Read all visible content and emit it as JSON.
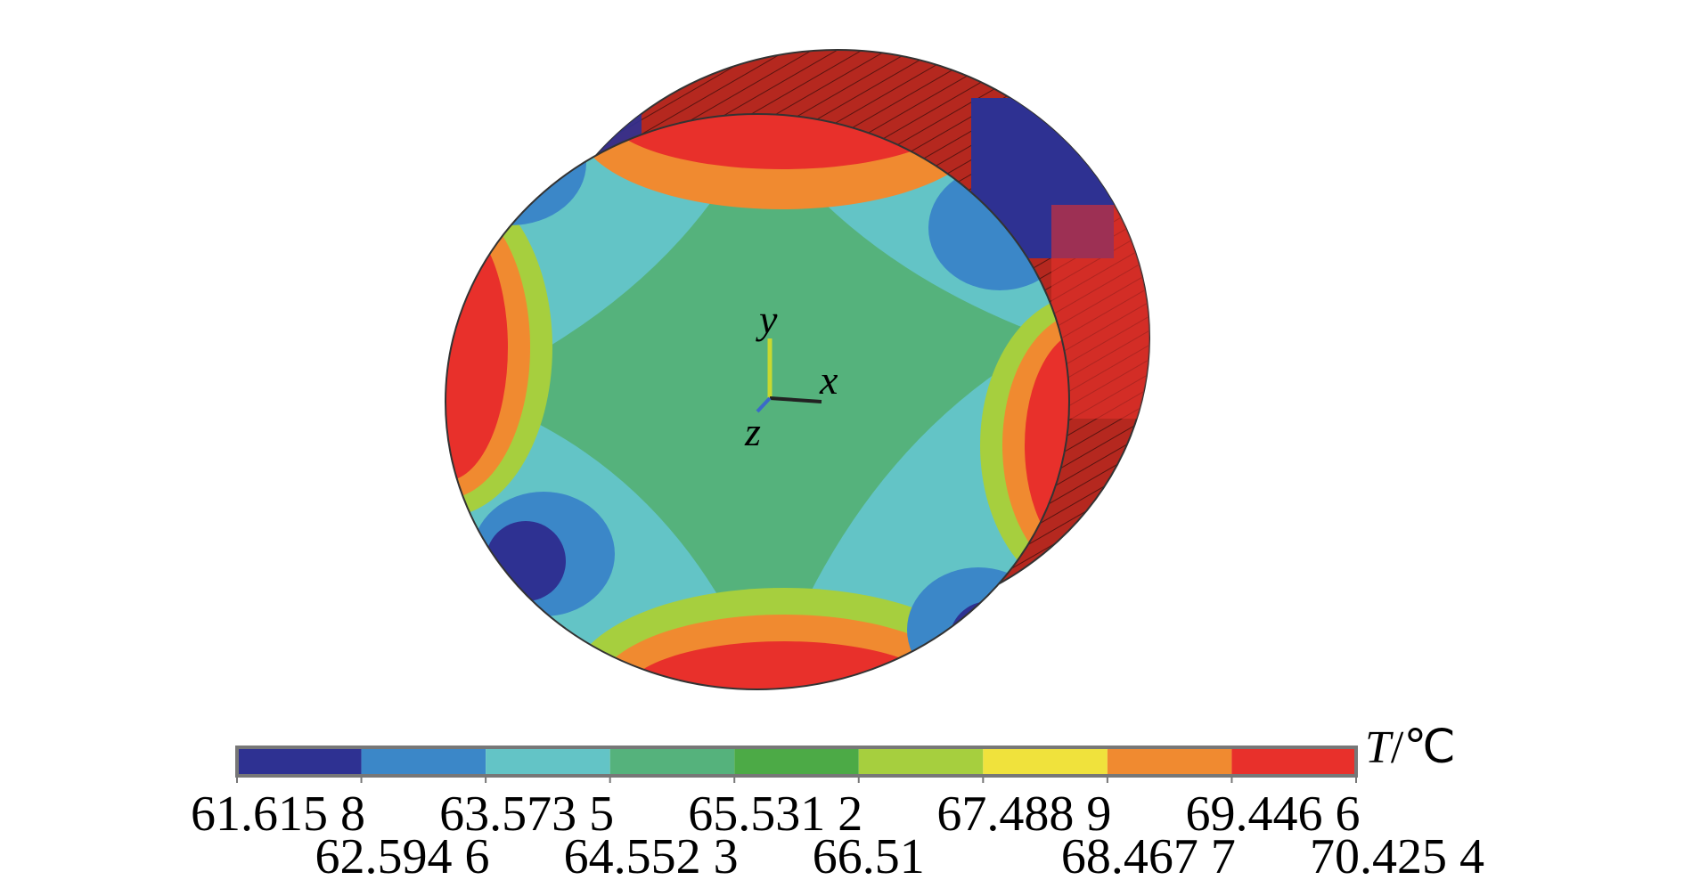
{
  "figure": {
    "axes": {
      "x": "x",
      "y": "y",
      "z": "z"
    },
    "colorbar": {
      "unit_symbol": "T",
      "unit_suffix": "/℃",
      "colors": [
        "#2e3192",
        "#3b87c8",
        "#63c4c6",
        "#55b27c",
        "#4caa46",
        "#a6cf3e",
        "#f0e23c",
        "#f08a30",
        "#e8302b"
      ],
      "ticks": [
        "61.615 8",
        "62.594 6",
        "63.573 5",
        "64.552 3",
        "65.531 2",
        "66.51",
        "67.488 9",
        "68.467 7",
        "69.446 6",
        "70.425 4"
      ]
    }
  }
}
